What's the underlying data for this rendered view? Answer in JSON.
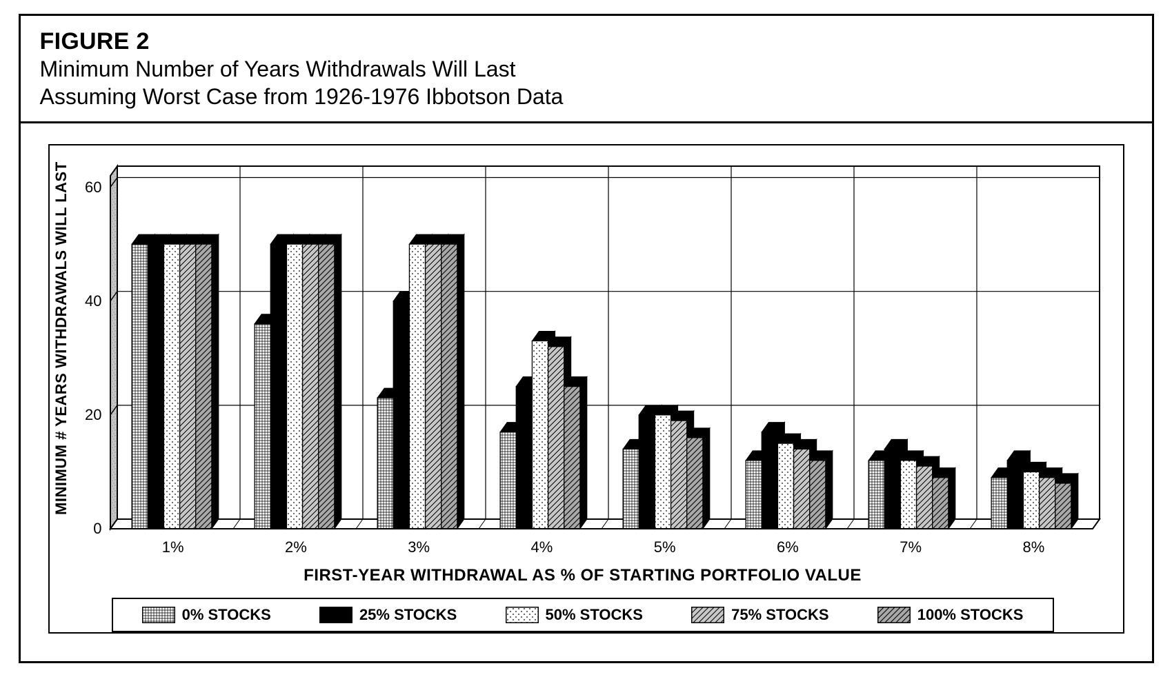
{
  "figure": {
    "number": "FIGURE 2",
    "subtitle_line1": "Minimum Number of Years Withdrawals Will Last",
    "subtitle_line2": "Assuming Worst Case from 1926-1976 Ibbotson Data"
  },
  "chart": {
    "type": "bar-3d-grouped",
    "ylabel": "MINIMUM # YEARS WITHDRAWALS WILL LAST",
    "xlabel": "FIRST-YEAR WITHDRAWAL AS % OF STARTING PORTFOLIO VALUE",
    "ylim": [
      0,
      62
    ],
    "yticks": [
      0,
      20,
      40,
      60
    ],
    "ytick_labels": [
      "0",
      "20",
      "40",
      "60"
    ],
    "categories": [
      "1%",
      "2%",
      "3%",
      "4%",
      "5%",
      "6%",
      "7%",
      "8%"
    ],
    "series": [
      {
        "name": "0% STOCKS",
        "pattern": "crosshatch",
        "fill": "#ffffff"
      },
      {
        "name": "25% STOCKS",
        "pattern": "solid",
        "fill": "#000000"
      },
      {
        "name": "50% STOCKS",
        "pattern": "dots",
        "fill": "#ffffff"
      },
      {
        "name": "75% STOCKS",
        "pattern": "hatch45",
        "fill": "#b8b8b8"
      },
      {
        "name": "100% STOCKS",
        "pattern": "hatch45b",
        "fill": "#9e9e9e"
      }
    ],
    "values": [
      [
        50,
        50,
        50,
        50,
        50
      ],
      [
        36,
        50,
        50,
        50,
        50
      ],
      [
        23,
        40,
        50,
        50,
        50
      ],
      [
        17,
        25,
        33,
        32,
        25
      ],
      [
        14,
        20,
        20,
        19,
        16
      ],
      [
        12,
        17,
        15,
        14,
        12
      ],
      [
        12,
        14,
        12,
        11,
        9
      ],
      [
        9,
        12,
        10,
        9,
        8
      ]
    ],
    "style": {
      "background_color": "#ffffff",
      "grid_color": "#000000",
      "outline_color": "#000000",
      "axis_color": "#000000",
      "perspective_dx": 10,
      "perspective_dy": 14,
      "bar_gap_ratio": 0.3,
      "group_gap_ratio": 0.35,
      "title_fontsize": 34,
      "subtitle_fontsize": 32,
      "label_fontsize": 22,
      "axis_title_fontsize": 24,
      "legend_fontsize": 22
    }
  }
}
